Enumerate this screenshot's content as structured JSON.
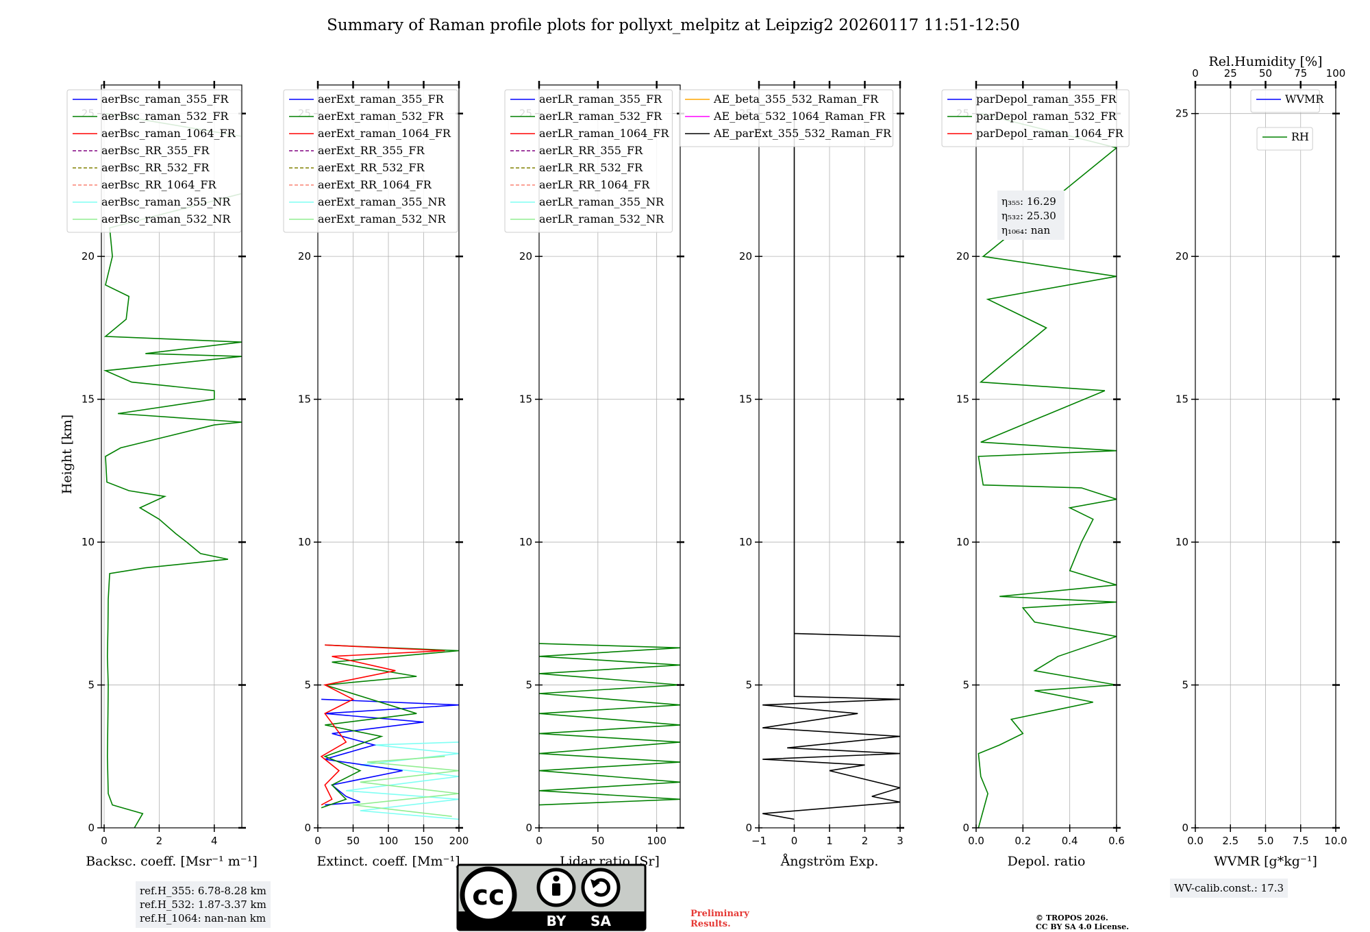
{
  "title": "Summary of Raman profile plots for pollyxt_melpitz at Leipzig2 20260117 11:51-12:50",
  "ylabel": "Height [km]",
  "colors": {
    "blue": "#0000ff",
    "green": "#008000",
    "red": "#ff0000",
    "purple": "#800080",
    "olive": "#808000",
    "salmon": "#fa8072",
    "cyan": "#7ffff4",
    "lightgreen": "#90ee90",
    "orange": "#ffa500",
    "magenta": "#ff00ff",
    "black": "#000000"
  },
  "chart_data": [
    {
      "type": "line",
      "xlabel": "Backsc. coeff. [Msr⁻¹ m⁻¹]",
      "xlim": [
        -0.1,
        5
      ],
      "ylim": [
        0,
        26
      ],
      "xticks": [
        0,
        2,
        4
      ],
      "xtick_labels": [
        "0",
        "2",
        "4"
      ],
      "yticks": [
        0,
        5,
        10,
        15,
        20,
        25
      ],
      "ytick_labels": [
        "0",
        "5",
        "10",
        "15",
        "20",
        "25"
      ],
      "legend": [
        "aerBsc_raman_355_FR",
        "aerBsc_raman_532_FR",
        "aerBsc_raman_1064_FR",
        "aerBsc_RR_355_FR",
        "aerBsc_RR_532_FR",
        "aerBsc_RR_1064_FR",
        "aerBsc_raman_355_NR",
        "aerBsc_raman_532_NR"
      ],
      "legend_styles": [
        "blue",
        "green",
        "red",
        "purple-dash",
        "olive-dash",
        "salmon-dash",
        "cyan",
        "lightgreen"
      ],
      "series": [
        {
          "name": "aerBsc_raman_532_FR",
          "color": "green",
          "points": [
            [
              1.1,
              0.0
            ],
            [
              1.4,
              0.5
            ],
            [
              0.3,
              0.8
            ],
            [
              0.15,
              1.2
            ],
            [
              0.12,
              2.5
            ],
            [
              0.14,
              4
            ],
            [
              0.15,
              5
            ],
            [
              0.12,
              6
            ],
            [
              0.14,
              7
            ],
            [
              0.15,
              8
            ],
            [
              0.2,
              8.9
            ],
            [
              1.5,
              9.1
            ],
            [
              4.5,
              9.4
            ],
            [
              3.5,
              9.6
            ],
            [
              3.0,
              10.0
            ],
            [
              2.6,
              10.3
            ],
            [
              2.0,
              10.8
            ],
            [
              1.3,
              11.2
            ],
            [
              2.2,
              11.6
            ],
            [
              0.9,
              11.8
            ],
            [
              0.1,
              12.1
            ],
            [
              0.05,
              13
            ],
            [
              0.6,
              13.3
            ],
            [
              4,
              14.1
            ],
            [
              5,
              14.2
            ],
            [
              0.5,
              14.5
            ],
            [
              4,
              15.0
            ],
            [
              4,
              15.3
            ],
            [
              1,
              15.6
            ],
            [
              0.05,
              16
            ],
            [
              5,
              16.5
            ],
            [
              1.5,
              16.6
            ],
            [
              5,
              17.0
            ],
            [
              0.05,
              17.2
            ],
            [
              0.8,
              17.8
            ],
            [
              0.9,
              18.6
            ],
            [
              0.05,
              19
            ],
            [
              0.3,
              20.0
            ],
            [
              0.2,
              21
            ],
            [
              5,
              22.2
            ],
            [
              5,
              24.2
            ],
            [
              0.05,
              25
            ]
          ]
        }
      ]
    },
    {
      "type": "line",
      "xlabel": "Extinct. coeff. [Mm⁻¹]",
      "xlim": [
        0,
        200
      ],
      "ylim": [
        0,
        26
      ],
      "xticks": [
        0,
        50,
        100,
        150,
        200
      ],
      "xtick_labels": [
        "0",
        "50",
        "100",
        "150",
        "200"
      ],
      "yticks": [
        0,
        5,
        10,
        15,
        20,
        25
      ],
      "ytick_labels": [
        "0",
        "5",
        "10",
        "15",
        "20",
        "25"
      ],
      "legend": [
        "aerExt_raman_355_FR",
        "aerExt_raman_532_FR",
        "aerExt_raman_1064_FR",
        "aerExt_RR_355_FR",
        "aerExt_RR_532_FR",
        "aerExt_RR_1064_FR",
        "aerExt_raman_355_NR",
        "aerExt_raman_532_NR"
      ],
      "legend_styles": [
        "blue",
        "green",
        "red",
        "purple-dash",
        "olive-dash",
        "salmon-dash",
        "cyan",
        "lightgreen"
      ],
      "series": [
        {
          "name": "aerExt_raman_355_NR",
          "color": "cyan",
          "points": [
            [
              200,
              0.3
            ],
            [
              60,
              0.6
            ],
            [
              200,
              1.0
            ],
            [
              40,
              1.3
            ],
            [
              200,
              1.8
            ],
            [
              60,
              2.2
            ],
            [
              200,
              2.6
            ],
            [
              80,
              2.9
            ],
            [
              200,
              3.0
            ]
          ]
        },
        {
          "name": "aerExt_raman_532_NR",
          "color": "lightgreen",
          "points": [
            [
              190,
              0.4
            ],
            [
              50,
              0.8
            ],
            [
              200,
              1.2
            ],
            [
              60,
              1.6
            ],
            [
              200,
              2.0
            ],
            [
              70,
              2.3
            ],
            [
              180,
              2.5
            ]
          ]
        },
        {
          "name": "aerExt_raman_355_FR",
          "color": "blue",
          "points": [
            [
              10,
              0.8
            ],
            [
              60,
              0.9
            ],
            [
              40,
              1.1
            ],
            [
              20,
              1.5
            ],
            [
              120,
              2.0
            ],
            [
              10,
              2.4
            ],
            [
              80,
              2.9
            ],
            [
              20,
              3.3
            ],
            [
              150,
              3.7
            ],
            [
              10,
              4.0
            ],
            [
              200,
              4.3
            ],
            [
              5,
              4.5
            ]
          ]
        },
        {
          "name": "aerExt_raman_532_FR",
          "color": "green",
          "points": [
            [
              5,
              0.7
            ],
            [
              40,
              1.0
            ],
            [
              20,
              1.5
            ],
            [
              60,
              2.0
            ],
            [
              10,
              2.5
            ],
            [
              90,
              3.2
            ],
            [
              10,
              3.6
            ],
            [
              140,
              4.0
            ],
            [
              10,
              5.0
            ],
            [
              140,
              5.3
            ],
            [
              20,
              5.8
            ],
            [
              200,
              6.2
            ],
            [
              10,
              6.4
            ]
          ]
        },
        {
          "name": "aerExt_raman_1064_FR",
          "color": "red",
          "points": [
            [
              5,
              0.8
            ],
            [
              20,
              1.0
            ],
            [
              10,
              1.5
            ],
            [
              30,
              2.0
            ],
            [
              5,
              2.5
            ],
            [
              40,
              3.0
            ],
            [
              10,
              4.0
            ],
            [
              50,
              4.5
            ],
            [
              10,
              5.0
            ],
            [
              110,
              5.5
            ],
            [
              20,
              6.0
            ],
            [
              180,
              6.2
            ],
            [
              10,
              6.4
            ]
          ]
        }
      ]
    },
    {
      "type": "line",
      "xlabel": "Lidar ratio [Sr]",
      "xlim": [
        0,
        120
      ],
      "ylim": [
        0,
        26
      ],
      "xticks": [
        0,
        50,
        100
      ],
      "xtick_labels": [
        "0",
        "50",
        "100"
      ],
      "yticks": [
        0,
        5,
        10,
        15,
        20,
        25
      ],
      "ytick_labels": [
        "0",
        "5",
        "10",
        "15",
        "20",
        "25"
      ],
      "legend": [
        "aerLR_raman_355_FR",
        "aerLR_raman_532_FR",
        "aerLR_raman_1064_FR",
        "aerLR_RR_355_FR",
        "aerLR_RR_532_FR",
        "aerLR_RR_1064_FR",
        "aerLR_raman_355_NR",
        "aerLR_raman_532_NR"
      ],
      "legend_styles": [
        "blue",
        "green",
        "red",
        "purple-dash",
        "olive-dash",
        "salmon-dash",
        "cyan",
        "lightgreen"
      ],
      "series": [
        {
          "name": "aerLR_raman_532_FR",
          "color": "green",
          "points": [
            [
              0,
              0.8
            ],
            [
              120,
              1.0
            ],
            [
              0,
              1.3
            ],
            [
              120,
              1.6
            ],
            [
              0,
              2.0
            ],
            [
              120,
              2.3
            ],
            [
              0,
              2.6
            ],
            [
              120,
              3.0
            ],
            [
              0,
              3.3
            ],
            [
              120,
              3.6
            ],
            [
              0,
              4.0
            ],
            [
              120,
              4.3
            ],
            [
              0,
              4.7
            ],
            [
              120,
              5.0
            ],
            [
              0,
              5.4
            ],
            [
              120,
              5.7
            ],
            [
              0,
              6.0
            ],
            [
              120,
              6.3
            ],
            [
              0,
              6.45
            ]
          ]
        }
      ]
    },
    {
      "type": "line",
      "xlabel": "Ångström Exp.",
      "xlim": [
        -1,
        3
      ],
      "ylim": [
        0,
        26
      ],
      "xticks": [
        -1,
        0,
        1,
        2,
        3
      ],
      "xtick_labels": [
        "−1",
        "0",
        "1",
        "2",
        "3"
      ],
      "yticks": [
        0,
        5,
        10,
        15,
        20,
        25
      ],
      "ytick_labels": [
        "0",
        "5",
        "10",
        "15",
        "20",
        "25"
      ],
      "legend": [
        "AE_beta_355_532_Raman_FR",
        "AE_beta_532_1064_Raman_FR",
        "AE_parExt_355_532_Raman_FR"
      ],
      "legend_styles": [
        "orange",
        "magenta",
        "black"
      ],
      "series": [
        {
          "name": "AE_parExt_355_532_Raman_FR",
          "color": "black",
          "points": [
            [
              0,
              0.3
            ],
            [
              -0.9,
              0.5
            ],
            [
              3,
              0.9
            ],
            [
              2.2,
              1.1
            ],
            [
              3,
              1.4
            ],
            [
              1,
              2.0
            ],
            [
              2,
              2.2
            ],
            [
              -0.9,
              2.4
            ],
            [
              3,
              2.6
            ],
            [
              -0.2,
              2.8
            ],
            [
              3,
              3.2
            ],
            [
              -0.9,
              3.5
            ],
            [
              1.8,
              4.0
            ],
            [
              -0.9,
              4.3
            ],
            [
              3,
              4.5
            ],
            [
              0,
              4.6
            ],
            [
              0,
              6.8
            ],
            [
              3,
              6.7
            ],
            [
              0,
              6.8
            ],
            [
              0,
              25
            ]
          ]
        }
      ]
    },
    {
      "type": "line",
      "xlabel": "Depol. ratio",
      "xlim": [
        0,
        0.6
      ],
      "ylim": [
        0,
        26
      ],
      "xticks": [
        0,
        0.2,
        0.4,
        0.6
      ],
      "xtick_labels": [
        "0.0",
        "0.2",
        "0.4",
        "0.6"
      ],
      "yticks": [
        0,
        5,
        10,
        15,
        20,
        25
      ],
      "ytick_labels": [
        "0",
        "5",
        "10",
        "15",
        "20",
        "25"
      ],
      "legend": [
        "parDepol_raman_355_FR",
        "parDepol_raman_532_FR",
        "parDepol_raman_1064_FR"
      ],
      "legend_styles": [
        "blue",
        "green",
        "red"
      ],
      "annotation": [
        "η₃₅₅: 16.29",
        "η₅₃₂: 25.30",
        "η₁₀₆₄: nan"
      ],
      "series": [
        {
          "name": "parDepol_raman_532_FR",
          "color": "green",
          "points": [
            [
              0.01,
              0.0
            ],
            [
              0.05,
              1.2
            ],
            [
              0.02,
              1.8
            ],
            [
              0.01,
              2.6
            ],
            [
              0.1,
              2.9
            ],
            [
              0.2,
              3.3
            ],
            [
              0.15,
              3.8
            ],
            [
              0.5,
              4.4
            ],
            [
              0.25,
              4.8
            ],
            [
              0.6,
              5.0
            ],
            [
              0.25,
              5.5
            ],
            [
              0.35,
              6.0
            ],
            [
              0.6,
              6.7
            ],
            [
              0.25,
              7.2
            ],
            [
              0.2,
              7.7
            ],
            [
              0.6,
              7.9
            ],
            [
              0.1,
              8.1
            ],
            [
              0.6,
              8.5
            ],
            [
              0.4,
              9.0
            ],
            [
              0.45,
              10.0
            ],
            [
              0.5,
              10.8
            ],
            [
              0.4,
              11.2
            ],
            [
              0.6,
              11.5
            ],
            [
              0.45,
              11.9
            ],
            [
              0.03,
              12.0
            ],
            [
              0.01,
              13
            ],
            [
              0.6,
              13.2
            ],
            [
              0.02,
              13.5
            ],
            [
              0.55,
              15.3
            ],
            [
              0.02,
              15.6
            ],
            [
              0.3,
              17.5
            ],
            [
              0.05,
              18.5
            ],
            [
              0.6,
              19.3
            ],
            [
              0.03,
              20
            ],
            [
              0.6,
              23.8
            ],
            [
              0.02,
              25
            ]
          ]
        }
      ]
    },
    {
      "type": "line",
      "xlabel": "WVMR [g*kg⁻¹]",
      "xlim": [
        0,
        10
      ],
      "ylim": [
        0,
        26
      ],
      "xticks": [
        0,
        2.5,
        5,
        7.5,
        10
      ],
      "xtick_labels": [
        "0.0",
        "2.5",
        "5.0",
        "7.5",
        "10.0"
      ],
      "yticks": [
        0,
        5,
        10,
        15,
        20,
        25
      ],
      "ytick_labels": [
        "0",
        "5",
        "10",
        "15",
        "20",
        "25"
      ],
      "x2label": "Rel.Humidity [%]",
      "x2ticks": [
        0,
        25,
        50,
        75,
        100
      ],
      "x2tick_labels": [
        "0",
        "25",
        "50",
        "75",
        "100"
      ],
      "legend": [
        "WVMR"
      ],
      "legend_styles": [
        "blue"
      ],
      "legend2": [
        "RH"
      ],
      "legend2_styles": [
        "green"
      ],
      "series": []
    }
  ],
  "ref_heights": [
    "ref.H_355: 6.78-8.28 km",
    "ref.H_532: 1.87-3.37 km",
    "ref.H_1064: nan-nan km"
  ],
  "wv_calib": "WV-calib.const.: 17.3",
  "cc_logo": {
    "cc": "cc",
    "by": "BY",
    "sa": "SA"
  },
  "preliminary": [
    "Preliminary",
    "Results."
  ],
  "copyright": [
    "© TROPOS 2026.",
    "CC BY SA 4.0 License."
  ]
}
